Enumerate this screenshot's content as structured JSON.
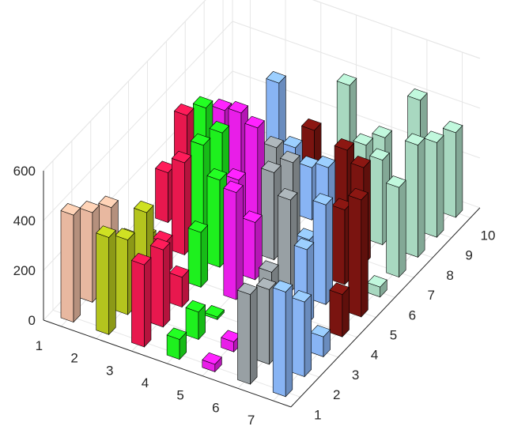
{
  "chart_data": {
    "type": "bar3",
    "title": "",
    "xlabel": "",
    "ylabel": "",
    "zlabel": "",
    "x_ticks": [
      "1",
      "2",
      "3",
      "4",
      "5",
      "6",
      "7"
    ],
    "y_ticks": [
      "1",
      "2",
      "3",
      "4",
      "5",
      "6",
      "7",
      "8",
      "9",
      "10"
    ],
    "z_ticks": [
      "0",
      "200",
      "400",
      "600"
    ],
    "zlim": [
      0,
      600
    ],
    "grid": true,
    "colors": {
      "1": "#e8b8a0",
      "2": "#b4c41e",
      "3": "#e8184e",
      "4": "#1ef01e",
      "5": "#e81ee8",
      "6": "#98a0a4",
      "7": "#88b4f4",
      "8": "#7a1410",
      "9": "#a8d8c0"
    },
    "grid_rows": [
      [
        430,
        390,
        330,
        80,
        30,
        360,
        420
      ],
      [
        360,
        300,
        310,
        110,
        40,
        300,
        300
      ],
      [
        300,
        330,
        120,
        10,
        60,
        100,
        80
      ],
      [
        90,
        130,
        220,
        430,
        160,
        300,
        170
      ],
      [
        20,
        370,
        350,
        230,
        370,
        400,
        470
      ],
      [
        200,
        360,
        270,
        350,
        130,
        300,
        40
      ],
      [
        350,
        330,
        400,
        310,
        340,
        390,
        360
      ],
      [
        300,
        330,
        240,
        210,
        330,
        340,
        450
      ],
      [
        210,
        30,
        160,
        40,
        270,
        100,
        380
      ],
      [
        60,
        290,
        150,
        380,
        220,
        420,
        340
      ]
    ],
    "grid_colors": [
      [
        1,
        2,
        3,
        4,
        5,
        6,
        7
      ],
      [
        1,
        2,
        3,
        4,
        5,
        6,
        7
      ],
      [
        1,
        2,
        3,
        4,
        5,
        6,
        7
      ],
      [
        2,
        3,
        4,
        5,
        6,
        7,
        8
      ],
      [
        2,
        3,
        4,
        5,
        6,
        7,
        8
      ],
      [
        3,
        4,
        5,
        6,
        7,
        8,
        9
      ],
      [
        3,
        4,
        5,
        6,
        7,
        8,
        9
      ],
      [
        4,
        5,
        6,
        7,
        8,
        9,
        9
      ],
      [
        5,
        6,
        7,
        8,
        9,
        9,
        9
      ],
      [
        6,
        7,
        8,
        9,
        9,
        9,
        9
      ]
    ]
  }
}
